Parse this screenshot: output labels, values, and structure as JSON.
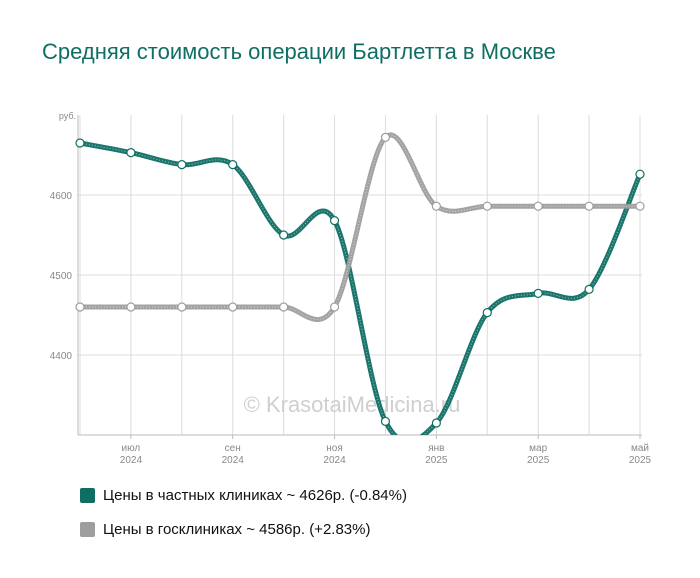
{
  "title": "Средняя стоимость операции Бартлетта в Москве",
  "watermark": "© KrasotaiMedicina.ru",
  "chart_data": {
    "type": "line",
    "ylabel": "руб.",
    "yticks": [
      4400,
      4500,
      4600
    ],
    "ylim": [
      4300,
      4700
    ],
    "x_labels": [
      {
        "month": "июл",
        "year": "2024",
        "index": 1
      },
      {
        "month": "сен",
        "year": "2024",
        "index": 3
      },
      {
        "month": "ноя",
        "year": "2024",
        "index": 5
      },
      {
        "month": "янв",
        "year": "2025",
        "index": 7
      },
      {
        "month": "мар",
        "year": "2025",
        "index": 9
      },
      {
        "month": "май",
        "year": "2025",
        "index": 11
      }
    ],
    "x": [
      "июн 2024",
      "июл 2024",
      "авг 2024",
      "сен 2024",
      "окт 2024",
      "ноя 2024",
      "дек 2024",
      "янв 2025",
      "фев 2025",
      "мар 2025",
      "апр 2025",
      "май 2025"
    ],
    "series": [
      {
        "name": "Цены в частных клиниках",
        "color": "#0f6e64",
        "values": [
          4665,
          4653,
          4638,
          4638,
          4550,
          4568,
          4317,
          4315,
          4453,
          4477,
          4482,
          4626
        ]
      },
      {
        "name": "Цены в госклиниках",
        "color": "#9e9e9e",
        "values": [
          4460,
          4460,
          4460,
          4460,
          4460,
          4460,
          4672,
          4586,
          4586,
          4586,
          4586,
          4586
        ]
      }
    ],
    "legend": [
      {
        "label": "Цены в частных клиниках ~ 4626р. (-0.84%)",
        "color": "#0f6e64"
      },
      {
        "label": "Цены в госклиниках ~ 4586р. (+2.83%)",
        "color": "#9e9e9e"
      }
    ],
    "legend_placement": "bottom",
    "grid": true
  }
}
